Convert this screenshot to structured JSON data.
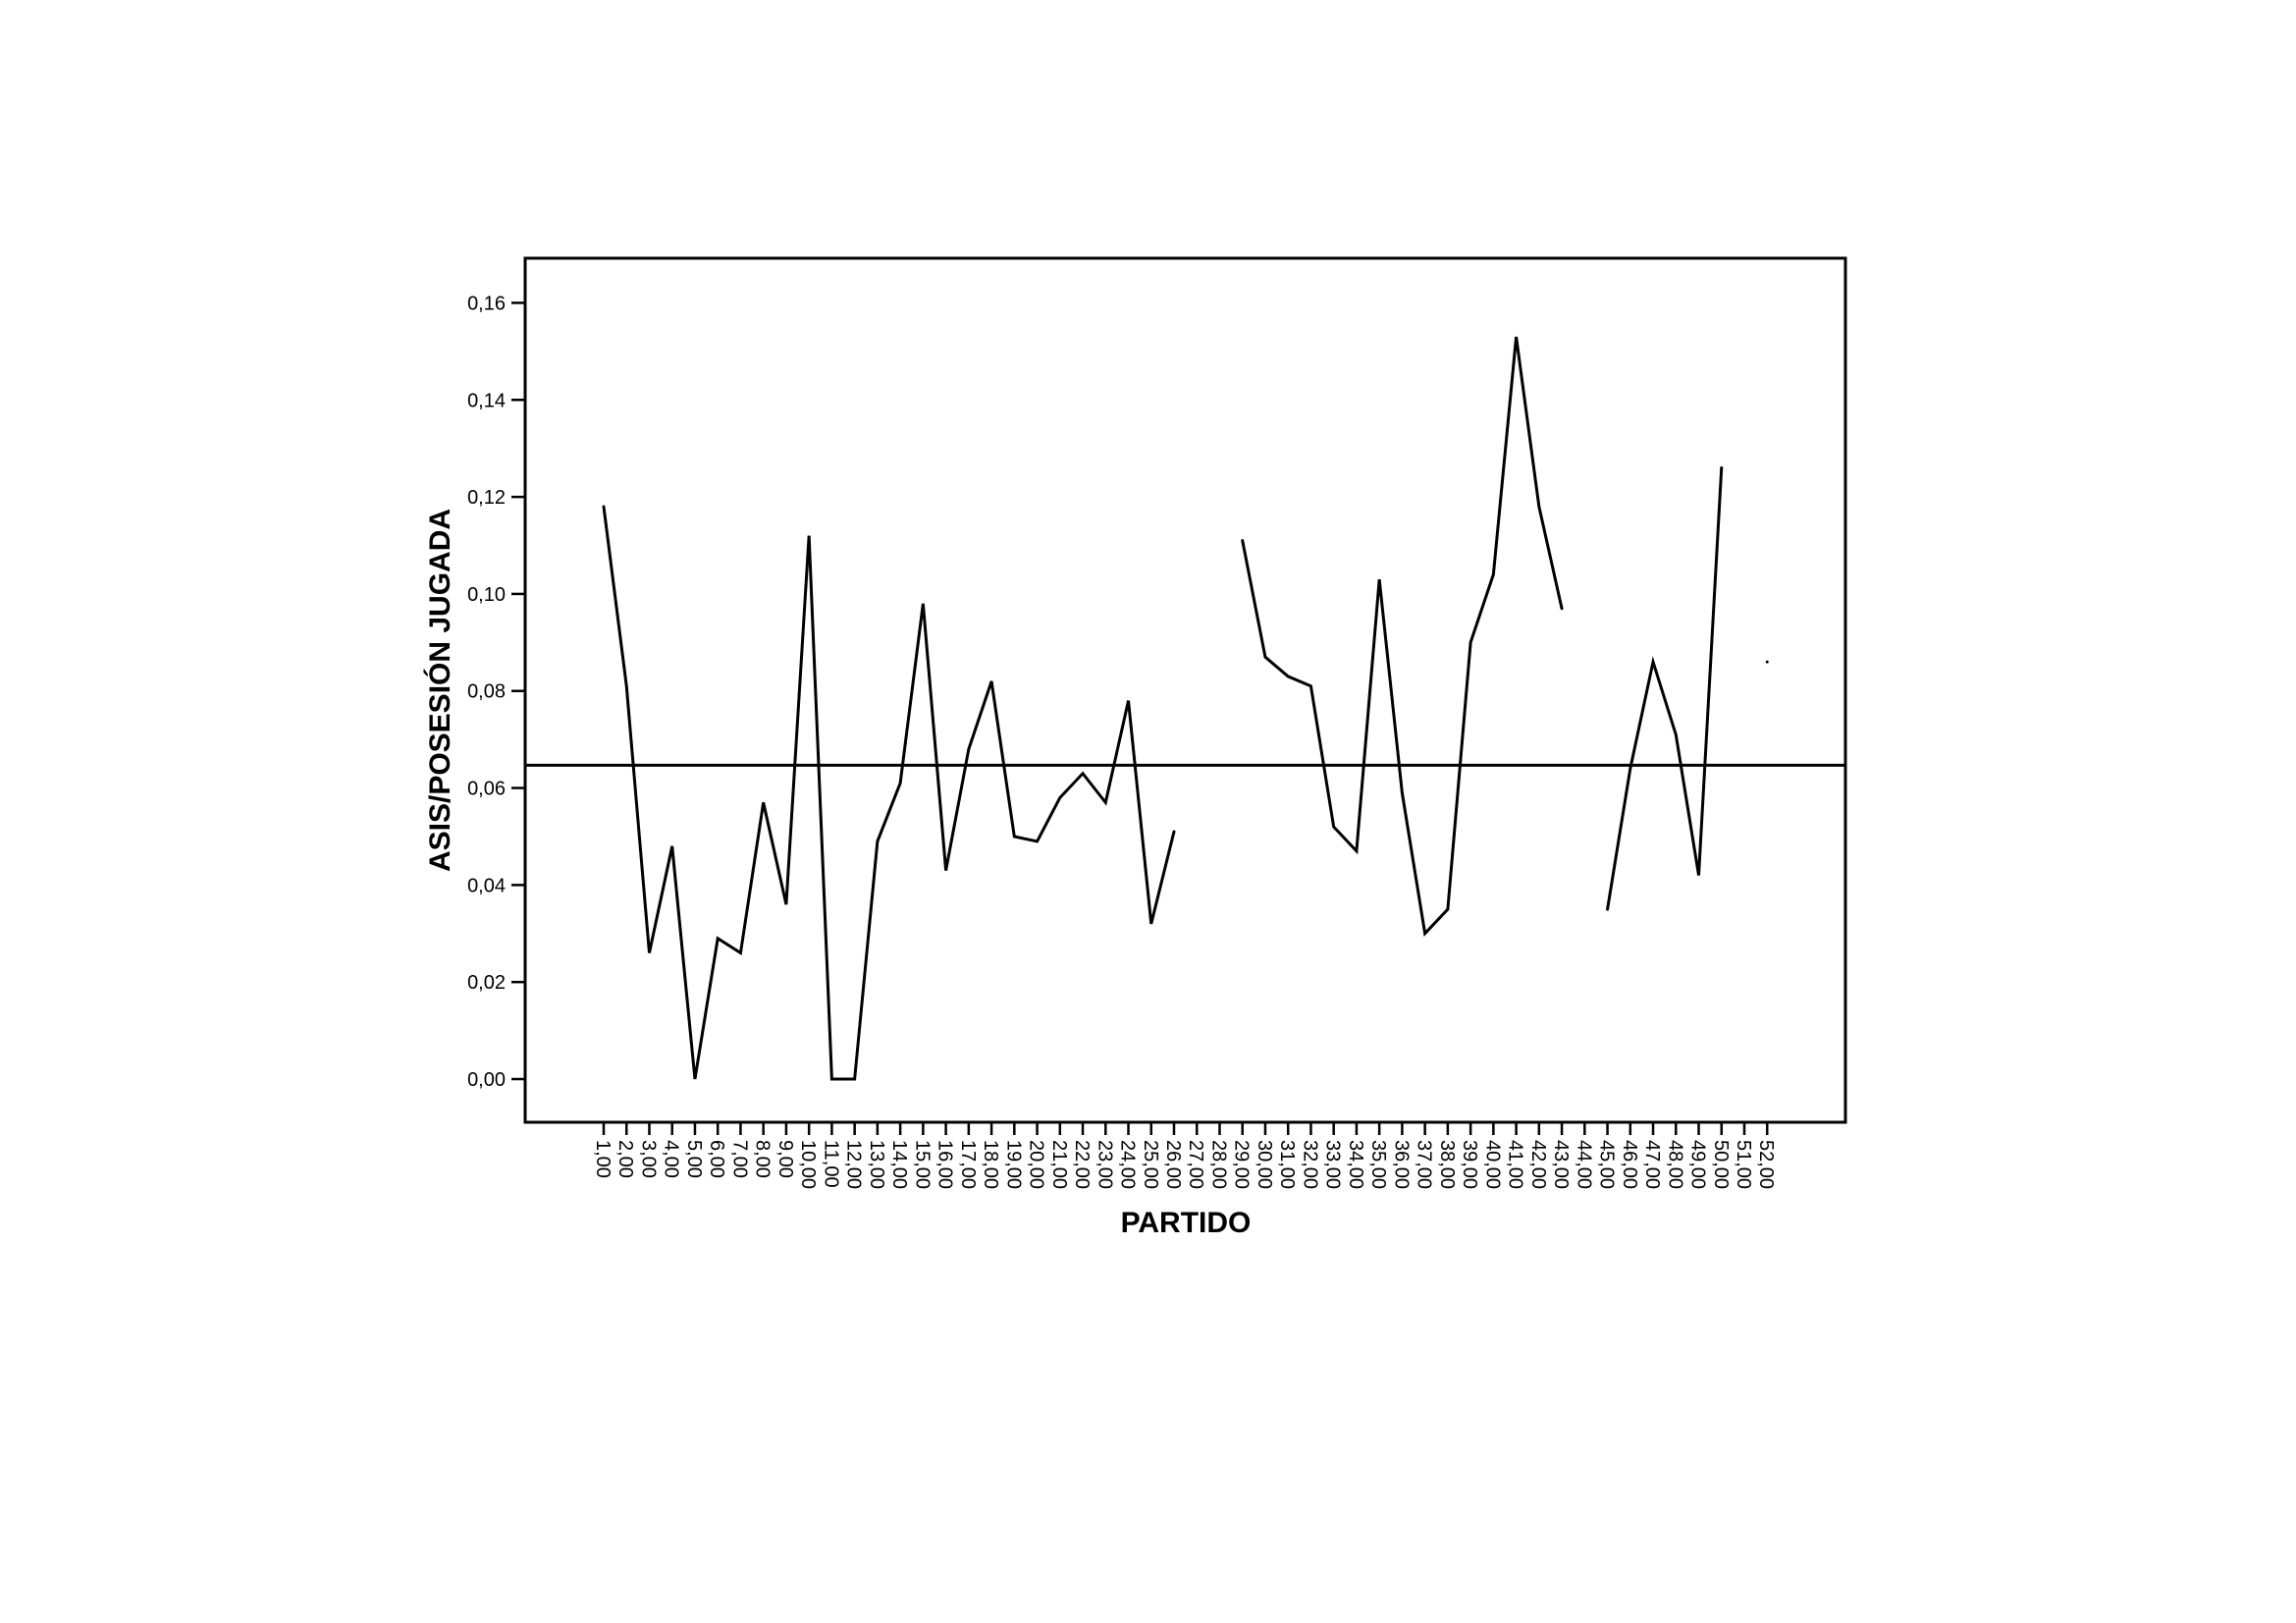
{
  "chart_data": {
    "type": "line",
    "xlabel": "PARTIDO",
    "ylabel": "ASIS/POSESIÓN JUGADA",
    "categories": [
      "1,00",
      "2,00",
      "3,00",
      "4,00",
      "5,00",
      "6,00",
      "7,00",
      "8,00",
      "9,00",
      "10,00",
      "11,00",
      "12,00",
      "13,00",
      "14,00",
      "15,00",
      "16,00",
      "17,00",
      "18,00",
      "19,00",
      "20,00",
      "21,00",
      "22,00",
      "23,00",
      "24,00",
      "25,00",
      "26,00",
      "27,00",
      "28,00",
      "29,00",
      "30,00",
      "31,00",
      "32,00",
      "33,00",
      "34,00",
      "35,00",
      "36,00",
      "37,00",
      "38,00",
      "39,00",
      "40,00",
      "41,00",
      "42,00",
      "43,00",
      "44,00",
      "45,00",
      "46,00",
      "47,00",
      "48,00",
      "49,00",
      "50,00",
      "51,00",
      "52,00"
    ],
    "values": [
      0.118,
      0.081,
      0.026,
      0.048,
      0.0,
      0.029,
      0.026,
      0.057,
      0.036,
      0.112,
      0.0,
      0.0,
      0.049,
      0.061,
      0.098,
      0.043,
      0.068,
      0.082,
      0.05,
      0.049,
      0.058,
      0.063,
      0.057,
      0.078,
      0.032,
      0.051,
      null,
      null,
      0.111,
      0.087,
      0.083,
      0.081,
      0.052,
      0.047,
      0.103,
      0.059,
      0.03,
      0.035,
      0.09,
      0.104,
      0.153,
      0.118,
      0.097,
      null,
      0.035,
      0.064,
      0.086,
      0.071,
      0.042,
      0.126,
      null,
      0.086
    ],
    "color": "#000000",
    "reference_line": 0.0647,
    "ylim": [
      -0.0089,
      0.1692
    ],
    "yticks": [
      {
        "value": 0,
        "label": "0,00"
      },
      {
        "value": 0.02,
        "label": "0,02"
      },
      {
        "value": 0.04,
        "label": "0,04"
      },
      {
        "value": 0.06,
        "label": "0,06"
      },
      {
        "value": 0.08,
        "label": "0,08"
      },
      {
        "value": 0.1,
        "label": "0,10"
      },
      {
        "value": 0.12,
        "label": "0,12"
      },
      {
        "value": 0.14,
        "label": "0,14"
      },
      {
        "value": 0.16,
        "label": "0,16"
      }
    ],
    "grid": false
  }
}
